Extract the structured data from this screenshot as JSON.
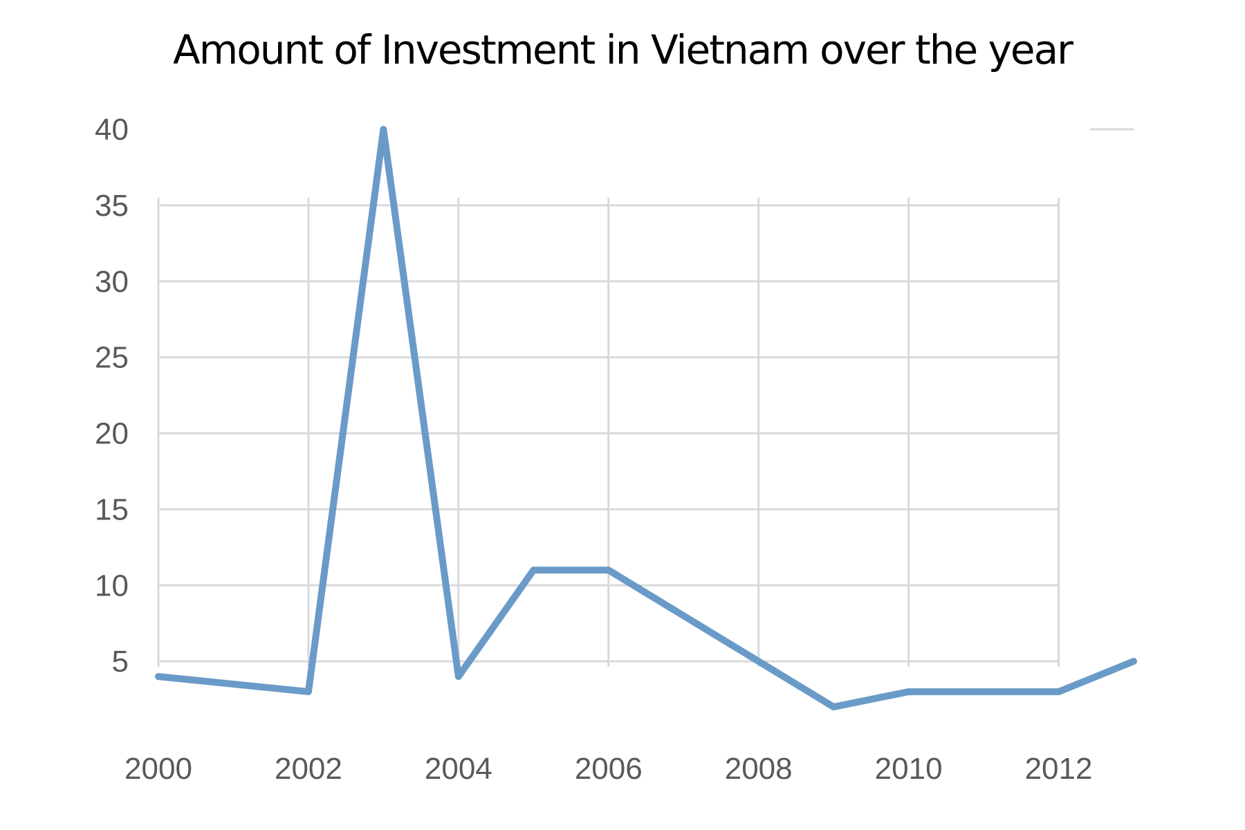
{
  "chart_data": {
    "type": "line",
    "title": "Amount of Investment in Vietnam over the year",
    "xlabel": "",
    "ylabel": "",
    "x": [
      2000,
      2002,
      2003,
      2004,
      2005,
      2006,
      2009,
      2010,
      2012,
      2013
    ],
    "series": [
      {
        "values": [
          4,
          3,
          40,
          4,
          11,
          11,
          2,
          3,
          3,
          5
        ],
        "color": "#6a9bc8"
      }
    ],
    "xlim": [
      2000,
      2013
    ],
    "ylim": [
      0,
      40
    ],
    "x_ticks": [
      "2000",
      "2002",
      "2004",
      "2006",
      "2008",
      "2010",
      "2012"
    ],
    "y_ticks": [
      "5",
      "10",
      "15",
      "20",
      "25",
      "30",
      "35",
      "40"
    ],
    "grid": true,
    "legend": "none",
    "grid_color": "#d9d9d9",
    "tick_label_color": "#595959"
  }
}
